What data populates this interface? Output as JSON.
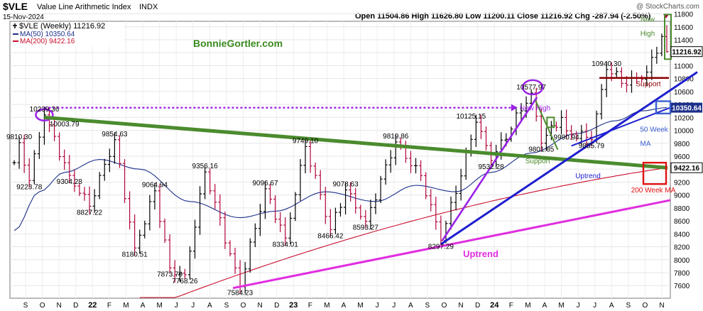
{
  "header": {
    "symbol": "$VLE",
    "name": "Value Line Arithmetic Index",
    "exchange": "INDX",
    "date": "15-Nov-2024",
    "watermark": "@ StockCharts.com",
    "ohlc": "Open 11504.86  High 11626.80  Low 11200.11  Close 11216.92  Chg -287.94 (-2.50%)",
    "legend_series": "$VLE (Weekly) 11216.92",
    "legend_ma50": "MA(50) 10350.64",
    "legend_ma200": "MA(200) 9422.16",
    "brand": "BonnieGortler.com"
  },
  "chart_data": {
    "type": "bar",
    "title": "$VLE Value Line Arithmetic Index INDX",
    "subtitle": "15-Nov-2024",
    "ylim": [
      7350,
      11850
    ],
    "yticks": [
      7600,
      7800,
      8000,
      8200,
      8400,
      8600,
      8800,
      9000,
      9200,
      9400,
      9600,
      9800,
      10000,
      10200,
      10400,
      10600,
      10800,
      11000,
      11200,
      11400,
      11600,
      11800
    ],
    "x_labels": [
      "S",
      "O",
      "N",
      "D",
      "22",
      "F",
      "M",
      "A",
      "M",
      "J",
      "J",
      "A",
      "S",
      "O",
      "N",
      "D",
      "23",
      "F",
      "M",
      "A",
      "M",
      "J",
      "J",
      "A",
      "S",
      "O",
      "N",
      "D",
      "24",
      "F",
      "M",
      "A",
      "M",
      "J",
      "J",
      "A",
      "S",
      "O",
      "N"
    ],
    "price_anchors": [
      [
        0,
        9500
      ],
      [
        1,
        9810
      ],
      [
        3,
        9224
      ],
      [
        6,
        10239
      ],
      [
        11,
        9304
      ],
      [
        15,
        8827
      ],
      [
        20,
        9855
      ],
      [
        24,
        8181
      ],
      [
        28,
        9065
      ],
      [
        31,
        7874
      ],
      [
        34,
        7768
      ],
      [
        38,
        9356
      ],
      [
        45,
        7584
      ],
      [
        50,
        9097
      ],
      [
        54,
        8334
      ],
      [
        58,
        9749
      ],
      [
        63,
        8466
      ],
      [
        66,
        9079
      ],
      [
        70,
        8593
      ],
      [
        76,
        9820
      ],
      [
        81,
        9300
      ],
      [
        85,
        8297
      ],
      [
        92,
        10125
      ],
      [
        95,
        9532
      ],
      [
        103,
        10578
      ],
      [
        105,
        9802
      ],
      [
        109,
        10200
      ],
      [
        110,
        9991
      ],
      [
        115,
        9856
      ],
      [
        118,
        10940
      ],
      [
        122,
        10700
      ],
      [
        126,
        10900
      ],
      [
        129,
        11450
      ],
      [
        130,
        11216.92
      ]
    ],
    "ma50_anchors": [
      [
        0,
        8450
      ],
      [
        5,
        9050
      ],
      [
        10,
        9350
      ],
      [
        17,
        9550
      ],
      [
        25,
        9400
      ],
      [
        35,
        8900
      ],
      [
        45,
        8650
      ],
      [
        52,
        8750
      ],
      [
        62,
        9050
      ],
      [
        72,
        8900
      ],
      [
        80,
        9150
      ],
      [
        88,
        9050
      ],
      [
        95,
        9350
      ],
      [
        103,
        9650
      ],
      [
        112,
        9950
      ],
      [
        120,
        10150
      ],
      [
        125,
        10300
      ],
      [
        130,
        10350.64
      ]
    ],
    "ma200_start": [
      25,
      7200
    ],
    "ma200_end": [
      130,
      9422.16
    ],
    "last_close": "11216.92",
    "ma50_last": "10350.64",
    "ma200_last": "9422.16",
    "price_labels": [
      {
        "text": "9810.30",
        "i": 1,
        "p": 9810
      },
      {
        "text": "9223.78",
        "i": 3,
        "p": 9224
      },
      {
        "text": "10239.36",
        "i": 6,
        "p": 10239
      },
      {
        "text": "10003.79",
        "i": 10,
        "p": 10004
      },
      {
        "text": "9304.28",
        "i": 11,
        "p": 9304
      },
      {
        "text": "8827.22",
        "i": 15,
        "p": 8827
      },
      {
        "text": "9854.63",
        "i": 20,
        "p": 9855
      },
      {
        "text": "8180.51",
        "i": 24,
        "p": 8181
      },
      {
        "text": "9064.94",
        "i": 28,
        "p": 9065
      },
      {
        "text": "7873.79",
        "i": 31,
        "p": 7874
      },
      {
        "text": "7768.26",
        "i": 34,
        "p": 7768
      },
      {
        "text": "9356.16",
        "i": 38,
        "p": 9356
      },
      {
        "text": "7584.23",
        "i": 45,
        "p": 7584
      },
      {
        "text": "9096.67",
        "i": 50,
        "p": 9097
      },
      {
        "text": "8334.01",
        "i": 54,
        "p": 8334
      },
      {
        "text": "9749.10",
        "i": 58,
        "p": 9749
      },
      {
        "text": "8466.42",
        "i": 63,
        "p": 8466
      },
      {
        "text": "9078.63",
        "i": 66,
        "p": 9079
      },
      {
        "text": "8593.27",
        "i": 70,
        "p": 8593
      },
      {
        "text": "9819.86",
        "i": 76,
        "p": 9820
      },
      {
        "text": "8297.29",
        "i": 85,
        "p": 8297
      },
      {
        "text": "10125.15",
        "i": 91,
        "p": 10125
      },
      {
        "text": "9532.28",
        "i": 95,
        "p": 9532
      },
      {
        "text": "10577.97",
        "i": 103,
        "p": 10578
      },
      {
        "text": "9801.85",
        "i": 105,
        "p": 9802
      },
      {
        "text": "9990.94",
        "i": 110,
        "p": 9991
      },
      {
        "text": "9855.79",
        "i": 115,
        "p": 9856
      },
      {
        "text": "10940.30",
        "i": 118,
        "p": 10940
      }
    ],
    "annotations": {
      "new_high_mid": "New High",
      "new_high_top_1": "New",
      "new_high_top_2": "High",
      "support_red": "Support",
      "support_green": "Support",
      "uptrend_blue": "Uptrend",
      "uptrend_magenta": "Uptrend",
      "ma50_note_1": "50 Week",
      "ma50_note_2": "MA",
      "ma200_note": "200 Week MA"
    },
    "colors": {
      "bars_up": "#000000",
      "bars_down": "#b3063a",
      "ma50": "#1c2f8a",
      "ma200": "#c8102e",
      "green_trend": "#4b8b2e",
      "blue_trend": "#1f1fd0",
      "magenta_trend": "#e02de0",
      "purple": "#9a22e6",
      "support": "#8b0000",
      "brand": "#3a8a1f"
    }
  }
}
